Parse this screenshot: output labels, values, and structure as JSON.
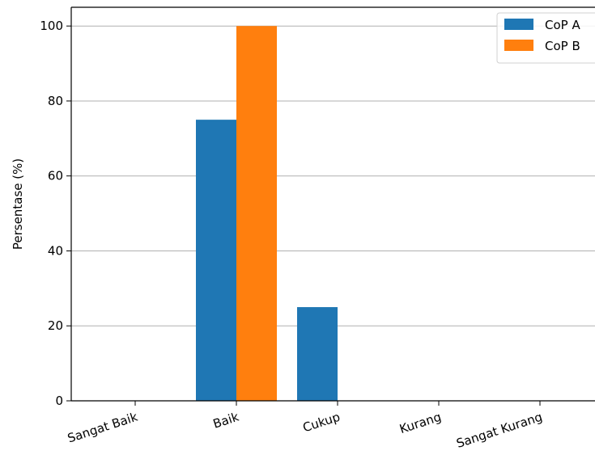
{
  "chart_data": {
    "type": "bar",
    "categories": [
      "Sangat Baik",
      "Baik",
      "Cukup",
      "Kurang",
      "Sangat Kurang"
    ],
    "series": [
      {
        "name": "CoP A",
        "values": [
          0,
          75,
          25,
          0,
          0
        ],
        "color": "#1f77b4"
      },
      {
        "name": "CoP B",
        "values": [
          0,
          100,
          0,
          0,
          0
        ],
        "color": "#ff7f0e"
      }
    ],
    "title": "",
    "xlabel": "",
    "ylabel": "Persentase (%)",
    "ylim": [
      0,
      105
    ],
    "yticks": [
      0,
      20,
      40,
      60,
      80,
      100
    ],
    "grid": "horizontal",
    "legend_position": "top-right"
  }
}
